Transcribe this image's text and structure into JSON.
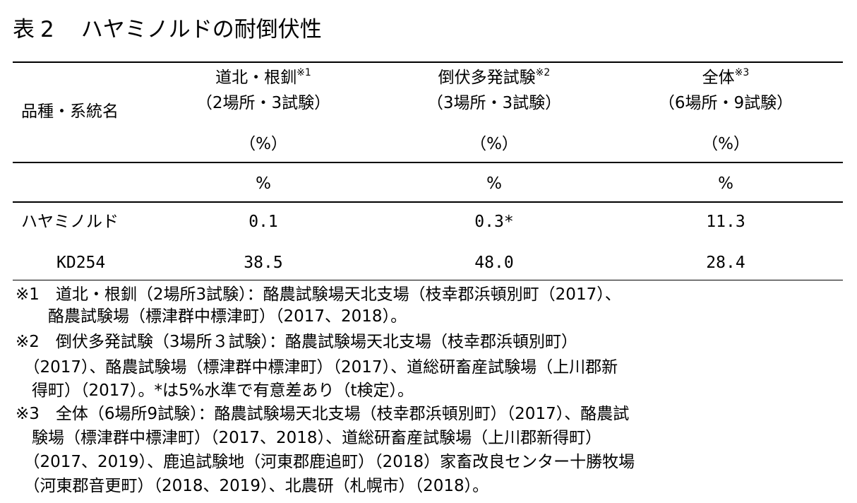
{
  "title": {
    "label": "表",
    "number": "2",
    "text": "ハヤミノルドの耐倒伏性"
  },
  "header": {
    "row_label": "品種・系統名",
    "columns": [
      {
        "name": "道北・根釧",
        "note": "※1",
        "detail": "（2場所・3試験）",
        "unit": "（%）"
      },
      {
        "name": "倒伏多発試験",
        "note": "※2",
        "detail": "（3場所・3試験）",
        "unit": "（%）"
      },
      {
        "name": "全体",
        "note": "※3",
        "detail": "（6場所・9試験）",
        "unit": "（%）"
      }
    ],
    "unit_row": [
      "%",
      "%",
      "%"
    ]
  },
  "rows": [
    {
      "name": "ハヤミノルド",
      "values": [
        "0.1",
        "0.3*",
        "11.3"
      ]
    },
    {
      "name": "KD254",
      "values": [
        "38.5",
        "48.0",
        "28.4"
      ]
    }
  ],
  "footnotes": [
    "※1　道北・根釧（2場所3試験）：酪農試験場天北支場（枝幸郡浜頓別町（2017）、",
    "　　酪農試験場（標津群中標津町）（2017、2018）。",
    "※2　倒伏多発試験（3場所３試験）：酪農試験場天北支場（枝幸郡浜頓別町）",
    "　（2017）、酪農試験場（標津群中標津町）（2017）、道総研畜産試験場（上川郡新",
    "　得町）（2017）。*は5%水準で有意差あり（t検定）。",
    "※3　全体（6場所9試験）：酪農試験場天北支場（枝幸郡浜頓別町）（2017）、酪農試",
    "　験場（標津群中標津町）（2017、2018）、道総研畜産試験場（上川郡新得町）",
    "　（2017、2019）、鹿追試験地（河東郡鹿追町）（2018）家畜改良センター十勝牧場",
    "　（河東郡音更町）（2018、2019）、北農研（札幌市）（2018）。"
  ]
}
